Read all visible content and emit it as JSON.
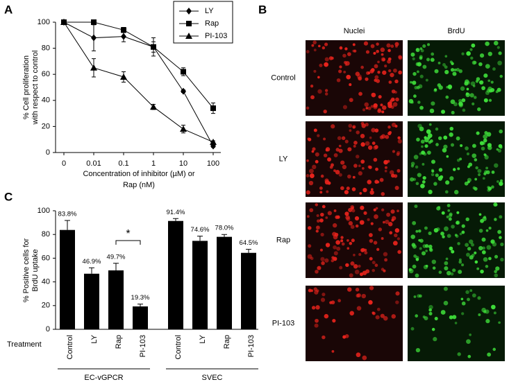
{
  "figure": {
    "panel_labels": [
      "A",
      "B",
      "C"
    ],
    "image_grid": {
      "columns": [
        "Nuclei",
        "BrdU"
      ],
      "rows": [
        "Control",
        "LY",
        "Rap",
        "PI-103"
      ]
    }
  },
  "chart_data": [
    {
      "type": "line",
      "xlabel": [
        "Concentration of inhibitor (µM) or",
        "Rap (nM)"
      ],
      "ylabel": [
        "% Cell proliferation",
        "with respect to control"
      ],
      "categories": [
        "0",
        "0.01",
        "0.1",
        "1",
        "10",
        "100"
      ],
      "series": [
        {
          "name": "LY",
          "color": "#000000",
          "marker": "diamond",
          "values": [
            100,
            88,
            89,
            81,
            47,
            5
          ],
          "errors": [
            0,
            10,
            4,
            4,
            1,
            1
          ]
        },
        {
          "name": "Rap",
          "color": "#000000",
          "marker": "square",
          "values": [
            100,
            100,
            94,
            81,
            62,
            34
          ],
          "errors": [
            0,
            0,
            2,
            7,
            3,
            4
          ]
        },
        {
          "name": "PI-103",
          "color": "#000000",
          "marker": "triangle",
          "values": [
            100,
            65,
            58,
            35,
            18,
            8
          ],
          "errors": [
            0,
            7,
            4,
            2,
            3,
            1
          ]
        }
      ],
      "ylim": [
        0,
        100
      ],
      "yticks": [
        0,
        20,
        40,
        60,
        80,
        100
      ],
      "grid": false,
      "legend": "top-right"
    },
    {
      "type": "bar",
      "xlabel": "Treatment",
      "ylabel": [
        "% Positive cells for",
        "BrdU uptake"
      ],
      "color": "#000000",
      "groups": [
        {
          "name": "EC-vGPCR",
          "categories": [
            "Control",
            "LY",
            "Rap",
            "PI-103"
          ],
          "values": [
            83.8,
            46.9,
            49.7,
            19.3
          ],
          "value_labels": [
            "83.8%",
            "46.9%",
            "49.7%",
            "19.3%"
          ],
          "errors": [
            8,
            5,
            6,
            2
          ]
        },
        {
          "name": "SVEC",
          "categories": [
            "Control",
            "LY",
            "Rap",
            "PI-103"
          ],
          "values": [
            91.4,
            74.6,
            78.0,
            64.5
          ],
          "value_labels": [
            "91.4%",
            "74.6%",
            "78.0%",
            "64.5%"
          ],
          "errors": [
            2,
            4,
            2,
            3
          ]
        }
      ],
      "annotations": [
        {
          "text": "*",
          "group": 0,
          "between": [
            2,
            3
          ]
        }
      ],
      "ylim": [
        0,
        100
      ],
      "yticks": [
        0,
        20,
        40,
        60,
        80,
        100
      ],
      "grid": false
    }
  ]
}
